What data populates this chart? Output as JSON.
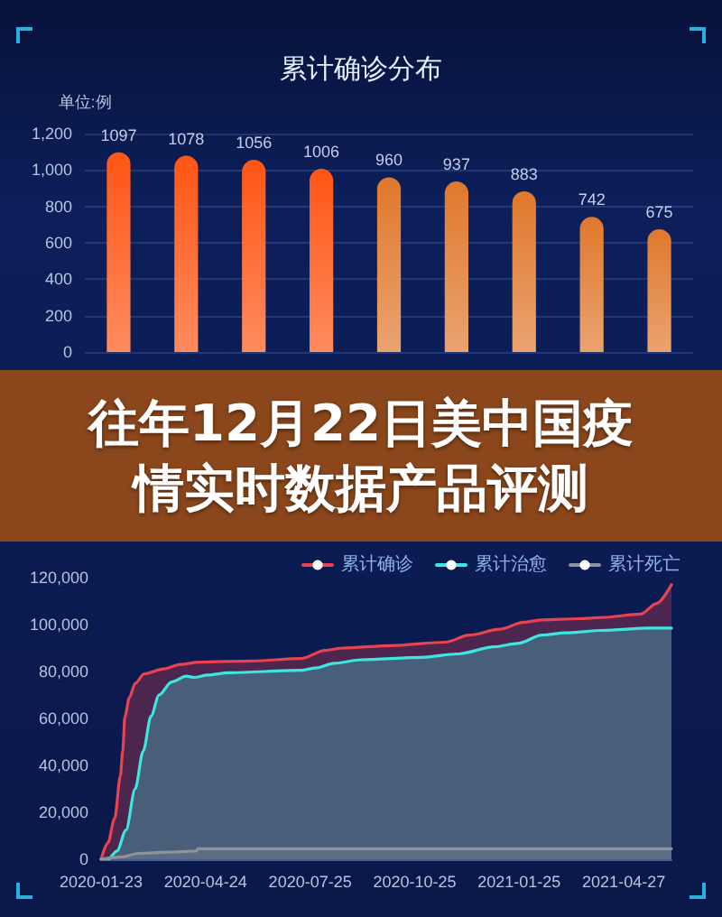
{
  "chart_data": [
    {
      "type": "bar",
      "title": "累计确诊分布",
      "ylabel": "单位:例",
      "categories": [
        null,
        null,
        null,
        null,
        null,
        null,
        null,
        null,
        null
      ],
      "values": [
        1097,
        1078,
        1056,
        1006,
        960,
        937,
        883,
        742,
        675
      ],
      "colors": [
        "#ff5514",
        "#ff5514",
        "#ff5514",
        "#ff5514",
        "#e0782c",
        "#e0782c",
        "#e0782c",
        "#e0782c",
        "#e0782c"
      ],
      "ylim": [
        0,
        1200
      ],
      "yticks": [
        0,
        200,
        400,
        600,
        800,
        {
          "value": 1000,
          "label": "1,000"
        },
        {
          "value": 1200,
          "label": "1,200"
        }
      ],
      "grid": "y",
      "data_labels": true
    },
    {
      "type": "other",
      "title": "往年12月22日美中国疫情实时数据产品评测"
    },
    {
      "type": "area",
      "series": [
        {
          "name": "累计确诊",
          "color": "#e8434f",
          "x": [
            "2020-01-23",
            "2020-01-29",
            "2020-02-04",
            "2020-02-09",
            "2020-02-11",
            "2020-02-13",
            "2020-02-17",
            "2020-02-22",
            "2020-03-01",
            "2020-03-17",
            "2020-04-02",
            "2020-04-18",
            "2020-06-04",
            "2020-07-17",
            "2020-08-07",
            "2020-08-23",
            "2020-10-04",
            "2020-11-21",
            "2020-12-12",
            "2021-01-08",
            "2021-01-29",
            "2021-02-14",
            "2021-03-18",
            "2021-04-08",
            "2021-05-12",
            "2021-05-26",
            "2021-06-08"
          ],
          "values": [
            0,
            7000,
            17500,
            35500,
            46000,
            61000,
            69000,
            75000,
            79000,
            81000,
            83000,
            84000,
            84500,
            85500,
            89000,
            90000,
            91000,
            92500,
            95500,
            98000,
            101000,
            102000,
            102500,
            103000,
            104500,
            109000,
            117000
          ]
        },
        {
          "name": "累计治愈",
          "color": "#3ee6e0",
          "x": [
            "2020-01-23",
            "2020-01-29",
            "2020-02-06",
            "2020-02-14",
            "2020-02-22",
            "2020-02-29",
            "2020-03-07",
            "2020-03-14",
            "2020-03-25",
            "2020-04-07",
            "2020-04-14",
            "2020-04-26",
            "2020-05-14",
            "2020-07-17",
            "2020-07-30",
            "2020-08-15",
            "2020-09-08",
            "2020-10-31",
            "2020-12-02",
            "2021-01-03",
            "2021-01-24",
            "2021-02-14",
            "2021-03-07",
            "2021-04-08",
            "2021-05-20",
            "2021-06-08"
          ],
          "values": [
            0,
            0,
            3500,
            12500,
            30000,
            46000,
            61000,
            70000,
            75500,
            78000,
            77500,
            78500,
            79500,
            80500,
            81500,
            83500,
            85000,
            86000,
            87500,
            90500,
            92000,
            95500,
            96500,
            97500,
            98500,
            98500
          ]
        },
        {
          "name": "累计死亡",
          "color": "#8c939c",
          "x": [
            "2020-01-23",
            "2020-02-10",
            "2020-02-25",
            "2020-03-20",
            "2020-04-16",
            "2020-04-17",
            "2021-06-08"
          ],
          "values": [
            0,
            1000,
            2500,
            3000,
            3500,
            4500,
            4500
          ]
        }
      ],
      "xlim": [
        "2020-01-23",
        "2021-06-08"
      ],
      "xticks": [
        "2020-01-23",
        "2020-04-24",
        "2020-07-25",
        "2020-10-25",
        "2021-01-25",
        "2021-04-27"
      ],
      "ylim": [
        0,
        120000
      ],
      "yticks": [
        0,
        {
          "value": 20000,
          "label": "20,000"
        },
        {
          "value": 40000,
          "label": "40,000"
        },
        {
          "value": 60000,
          "label": "60,000"
        },
        {
          "value": 80000,
          "label": "80,000"
        },
        {
          "value": 100000,
          "label": "100,000"
        },
        {
          "value": 120000,
          "label": "120,000"
        }
      ],
      "legend": "top right"
    }
  ]
}
